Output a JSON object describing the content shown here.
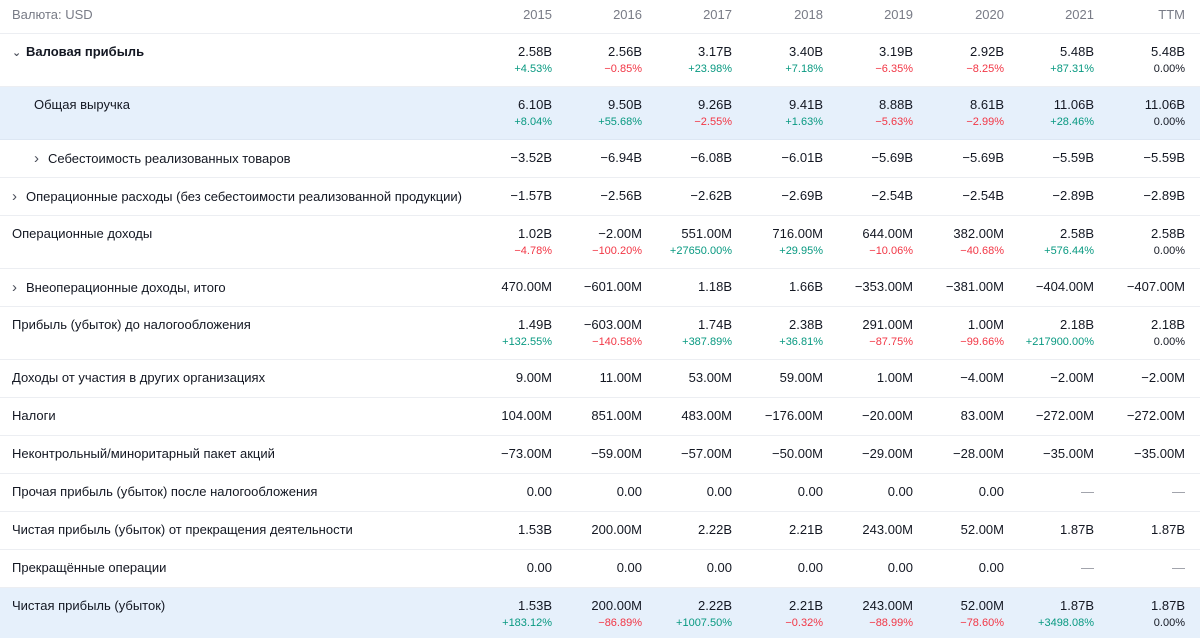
{
  "header": {
    "currency_label": "Валюта: USD",
    "columns": [
      "2015",
      "2016",
      "2017",
      "2018",
      "2019",
      "2020",
      "2021",
      "TTM"
    ]
  },
  "rows": [
    {
      "label": "Валовая прибыль",
      "bold": true,
      "chevron": "chevron-down-icon",
      "indent": 0,
      "highlight": false,
      "values": [
        "2.58B",
        "2.56B",
        "3.17B",
        "3.40B",
        "3.19B",
        "2.92B",
        "5.48B",
        "5.48B"
      ],
      "changes": [
        "+4.53%",
        "−0.85%",
        "+23.98%",
        "+7.18%",
        "−6.35%",
        "−8.25%",
        "+87.31%",
        "0.00%"
      ]
    },
    {
      "label": "Общая выручка",
      "bold": false,
      "chevron": "",
      "indent": 1,
      "highlight": true,
      "values": [
        "6.10B",
        "9.50B",
        "9.26B",
        "9.41B",
        "8.88B",
        "8.61B",
        "11.06B",
        "11.06B"
      ],
      "changes": [
        "+8.04%",
        "+55.68%",
        "−2.55%",
        "+1.63%",
        "−5.63%",
        "−2.99%",
        "+28.46%",
        "0.00%"
      ]
    },
    {
      "label": "Себестоимость реализованных товаров",
      "bold": false,
      "chevron": "chevron-right-icon",
      "indent": 1,
      "highlight": false,
      "values": [
        "−3.52B",
        "−6.94B",
        "−6.08B",
        "−6.01B",
        "−5.69B",
        "−5.69B",
        "−5.59B",
        "−5.59B"
      ],
      "changes": []
    },
    {
      "label": "Операционные расходы (без себестоимости реализованной продукции)",
      "bold": false,
      "chevron": "chevron-right-icon",
      "indent": 0,
      "highlight": false,
      "values": [
        "−1.57B",
        "−2.56B",
        "−2.62B",
        "−2.69B",
        "−2.54B",
        "−2.54B",
        "−2.89B",
        "−2.89B"
      ],
      "changes": []
    },
    {
      "label": "Операционные доходы",
      "bold": false,
      "chevron": "",
      "indent": 0,
      "highlight": false,
      "values": [
        "1.02B",
        "−2.00M",
        "551.00M",
        "716.00M",
        "644.00M",
        "382.00M",
        "2.58B",
        "2.58B"
      ],
      "changes": [
        "−4.78%",
        "−100.20%",
        "+27650.00%",
        "+29.95%",
        "−10.06%",
        "−40.68%",
        "+576.44%",
        "0.00%"
      ]
    },
    {
      "label": "Внеоперационные доходы, итого",
      "bold": false,
      "chevron": "chevron-right-icon",
      "indent": 0,
      "highlight": false,
      "values": [
        "470.00M",
        "−601.00M",
        "1.18B",
        "1.66B",
        "−353.00M",
        "−381.00M",
        "−404.00M",
        "−407.00M"
      ],
      "changes": []
    },
    {
      "label": "Прибыль (убыток) до налогообложения",
      "bold": false,
      "chevron": "",
      "indent": 0,
      "highlight": false,
      "values": [
        "1.49B",
        "−603.00M",
        "1.74B",
        "2.38B",
        "291.00M",
        "1.00M",
        "2.18B",
        "2.18B"
      ],
      "changes": [
        "+132.55%",
        "−140.58%",
        "+387.89%",
        "+36.81%",
        "−87.75%",
        "−99.66%",
        "+217900.00%",
        "0.00%"
      ]
    },
    {
      "label": "Доходы от участия в других организациях",
      "bold": false,
      "chevron": "",
      "indent": 0,
      "highlight": false,
      "values": [
        "9.00M",
        "11.00M",
        "53.00M",
        "59.00M",
        "1.00M",
        "−4.00M",
        "−2.00M",
        "−2.00M"
      ],
      "changes": []
    },
    {
      "label": "Налоги",
      "bold": false,
      "chevron": "",
      "indent": 0,
      "highlight": false,
      "values": [
        "104.00M",
        "851.00M",
        "483.00M",
        "−176.00M",
        "−20.00M",
        "83.00M",
        "−272.00M",
        "−272.00M"
      ],
      "changes": []
    },
    {
      "label": "Неконтрольный/миноритарный пакет акций",
      "bold": false,
      "chevron": "",
      "indent": 0,
      "highlight": false,
      "values": [
        "−73.00M",
        "−59.00M",
        "−57.00M",
        "−50.00M",
        "−29.00M",
        "−28.00M",
        "−35.00M",
        "−35.00M"
      ],
      "changes": []
    },
    {
      "label": "Прочая прибыль (убыток) после налогообложения",
      "bold": false,
      "chevron": "",
      "indent": 0,
      "highlight": false,
      "values": [
        "0.00",
        "0.00",
        "0.00",
        "0.00",
        "0.00",
        "0.00",
        "—",
        "—"
      ],
      "changes": []
    },
    {
      "label": "Чистая прибыль (убыток) от прекращения деятельности",
      "bold": false,
      "chevron": "",
      "indent": 0,
      "highlight": false,
      "values": [
        "1.53B",
        "200.00M",
        "2.22B",
        "2.21B",
        "243.00M",
        "52.00M",
        "1.87B",
        "1.87B"
      ],
      "changes": []
    },
    {
      "label": "Прекращённые операции",
      "bold": false,
      "chevron": "",
      "indent": 0,
      "highlight": false,
      "values": [
        "0.00",
        "0.00",
        "0.00",
        "0.00",
        "0.00",
        "0.00",
        "—",
        "—"
      ],
      "changes": []
    },
    {
      "label": "Чистая прибыль (убыток)",
      "bold": false,
      "chevron": "",
      "indent": 0,
      "highlight": true,
      "values": [
        "1.53B",
        "200.00M",
        "2.22B",
        "2.21B",
        "243.00M",
        "52.00M",
        "1.87B",
        "1.87B"
      ],
      "changes": [
        "+183.12%",
        "−86.89%",
        "+1007.50%",
        "−0.32%",
        "−88.99%",
        "−78.60%",
        "+3498.08%",
        "0.00%"
      ]
    }
  ],
  "colors": {
    "positive": "#089981",
    "negative": "#f23645",
    "highlight": "#e6f0fb"
  }
}
